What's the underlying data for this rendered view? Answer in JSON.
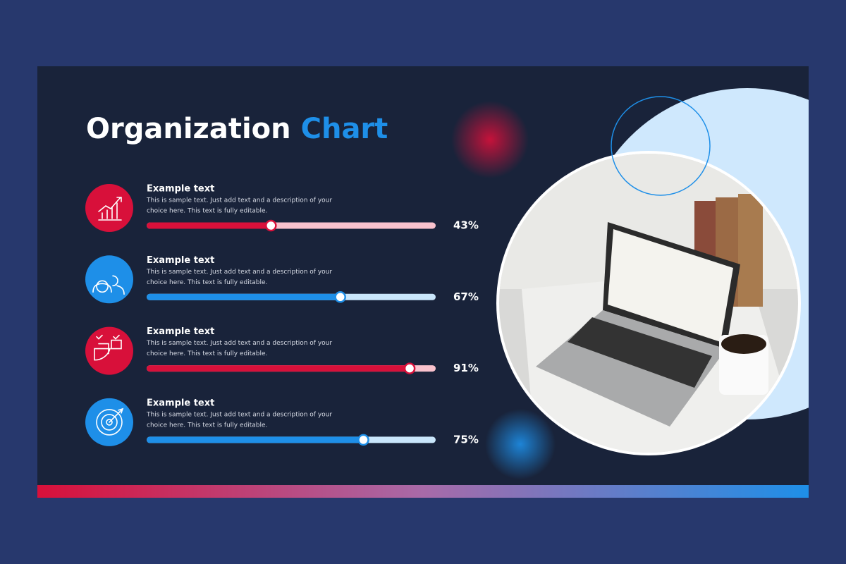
{
  "title": "Organization",
  "title_accent": "Chart",
  "chart_data": {
    "type": "progress",
    "categories": [
      "Example text",
      "Example text",
      "Example text",
      "Example text"
    ],
    "descriptions": [
      [
        "This is sample text. Just add text and a description of your",
        "choice here. This text is fully editable."
      ],
      [
        "This is sample text. Just add text and a description of your",
        "choice here. This text is fully editable."
      ],
      [
        "This is sample text. Just add text and a description of your",
        "choice here. This text is fully editable."
      ],
      [
        "This is sample text. Just add text and a description of your",
        "choice here. This text is fully editable."
      ]
    ],
    "values": [
      43,
      67,
      91,
      75
    ],
    "value_labels": [
      "43%",
      "67%",
      "91%",
      "75%"
    ],
    "colors": [
      "#d8103a",
      "#1e8fe8",
      "#d8103a",
      "#1e8fe8"
    ],
    "track_colors": [
      "#f9c2cd",
      "#c9e6fb",
      "#f9c2cd",
      "#c9e6fb"
    ],
    "xlim": [
      0,
      100
    ]
  }
}
